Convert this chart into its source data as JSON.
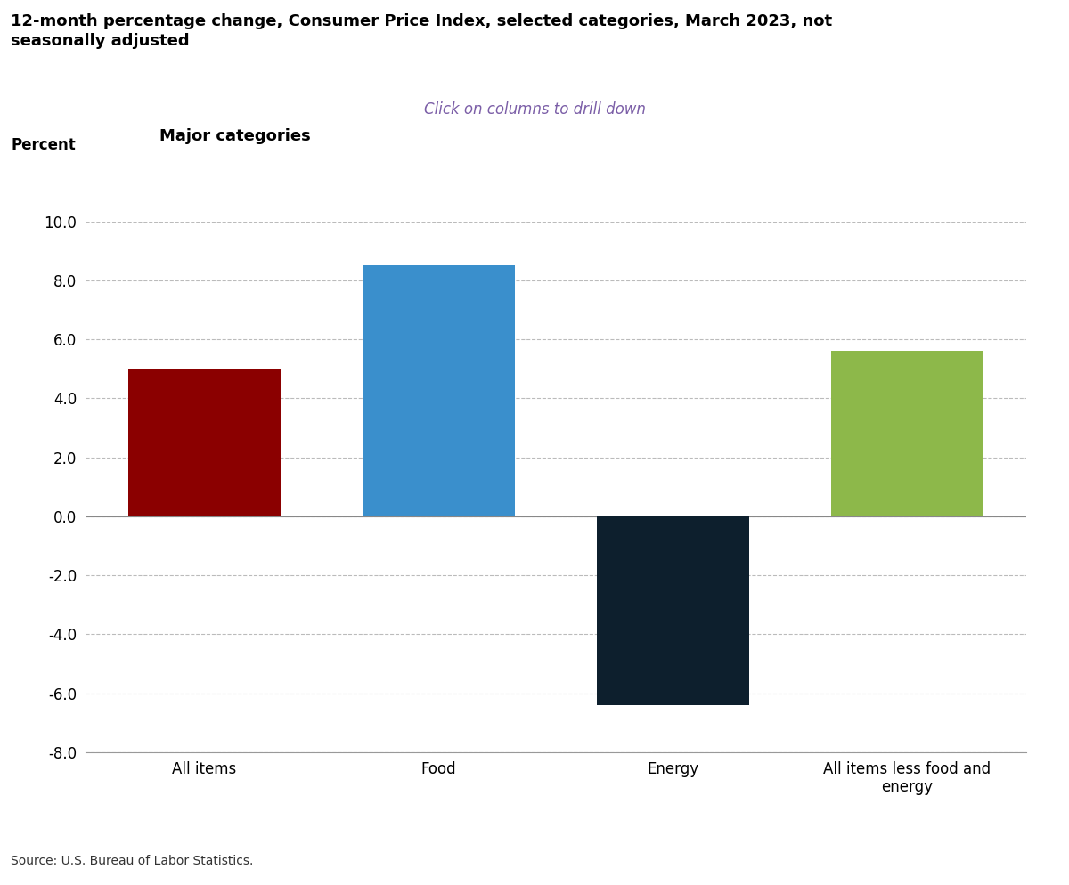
{
  "title": "12-month percentage change, Consumer Price Index, selected categories, March 2023, not\nseasonally adjusted",
  "subtitle": "Click on columns to drill down",
  "chart_label": "Major categories",
  "ylabel": "Percent",
  "source": "Source: U.S. Bureau of Labor Statistics.",
  "categories": [
    "All items",
    "Food",
    "Energy",
    "All items less food and\nenergy"
  ],
  "values": [
    5.0,
    8.5,
    -6.4,
    5.6
  ],
  "bar_colors": [
    "#8B0000",
    "#3A8FCC",
    "#0D1F2D",
    "#8DB84A"
  ],
  "ylim": [
    -8.0,
    10.0
  ],
  "yticks": [
    -8.0,
    -6.0,
    -4.0,
    -2.0,
    0.0,
    2.0,
    4.0,
    6.0,
    8.0,
    10.0
  ],
  "title_fontsize": 13,
  "subtitle_fontsize": 12,
  "subtitle_color": "#7B5EA7",
  "chart_label_fontsize": 13,
  "ylabel_fontsize": 12,
  "tick_fontsize": 12,
  "xlabel_fontsize": 12,
  "source_fontsize": 10,
  "background_color": "#FFFFFF",
  "grid_color": "#BBBBBB",
  "bar_width": 0.65
}
